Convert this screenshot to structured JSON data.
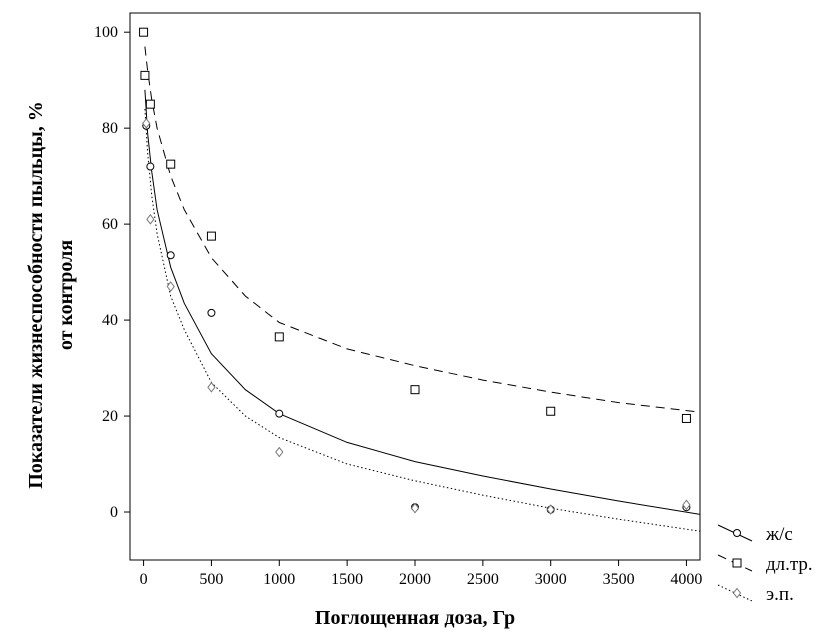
{
  "chart_data": {
    "type": "scatter",
    "xlabel": "Поглощенная доза, Гр",
    "ylabel_lines": [
      "Показатели жизнеспособности пыльцы, %",
      "от контроля"
    ],
    "xlim": [
      -100,
      4100
    ],
    "ylim": [
      -10,
      104
    ],
    "x_ticks": [
      0,
      500,
      1000,
      1500,
      2000,
      2500,
      3000,
      3500,
      4000
    ],
    "y_ticks": [
      0,
      20,
      40,
      60,
      80,
      100
    ],
    "legend_position": "right-bottom",
    "grid": false,
    "series": [
      {
        "name": "ж/с",
        "marker": "circle",
        "line": "solid",
        "points": [
          {
            "x": 0,
            "y": 100
          },
          {
            "x": 10,
            "y": 91
          },
          {
            "x": 20,
            "y": 80.5
          },
          {
            "x": 50,
            "y": 72
          },
          {
            "x": 200,
            "y": 53.5
          },
          {
            "x": 500,
            "y": 41.5
          },
          {
            "x": 1000,
            "y": 20.5
          },
          {
            "x": 2000,
            "y": 1
          },
          {
            "x": 3000,
            "y": 0.5
          },
          {
            "x": 4000,
            "y": 1
          }
        ],
        "curve": [
          {
            "x": 10,
            "y": 88
          },
          {
            "x": 30,
            "y": 79
          },
          {
            "x": 60,
            "y": 71
          },
          {
            "x": 100,
            "y": 63
          },
          {
            "x": 200,
            "y": 51
          },
          {
            "x": 300,
            "y": 43.5
          },
          {
            "x": 500,
            "y": 33
          },
          {
            "x": 750,
            "y": 25.5
          },
          {
            "x": 1000,
            "y": 20.5
          },
          {
            "x": 1500,
            "y": 14.5
          },
          {
            "x": 2000,
            "y": 10.5
          },
          {
            "x": 2500,
            "y": 7.5
          },
          {
            "x": 3000,
            "y": 4.8
          },
          {
            "x": 3500,
            "y": 2.3
          },
          {
            "x": 4100,
            "y": -0.5
          }
        ]
      },
      {
        "name": "дл.тр.",
        "marker": "square",
        "line": "dashed",
        "points": [
          {
            "x": 0,
            "y": 100
          },
          {
            "x": 10,
            "y": 91
          },
          {
            "x": 50,
            "y": 85
          },
          {
            "x": 200,
            "y": 72.5
          },
          {
            "x": 500,
            "y": 57.5
          },
          {
            "x": 1000,
            "y": 36.5
          },
          {
            "x": 2000,
            "y": 25.5
          },
          {
            "x": 3000,
            "y": 21
          },
          {
            "x": 4000,
            "y": 19.5
          }
        ],
        "curve": [
          {
            "x": 10,
            "y": 97
          },
          {
            "x": 30,
            "y": 92
          },
          {
            "x": 60,
            "y": 86
          },
          {
            "x": 100,
            "y": 80
          },
          {
            "x": 200,
            "y": 70
          },
          {
            "x": 300,
            "y": 63
          },
          {
            "x": 500,
            "y": 53
          },
          {
            "x": 750,
            "y": 45
          },
          {
            "x": 1000,
            "y": 39.5
          },
          {
            "x": 1500,
            "y": 34
          },
          {
            "x": 2000,
            "y": 30.5
          },
          {
            "x": 2500,
            "y": 27.5
          },
          {
            "x": 3000,
            "y": 25
          },
          {
            "x": 3500,
            "y": 22.8
          },
          {
            "x": 4100,
            "y": 20.8
          }
        ]
      },
      {
        "name": "э.п.",
        "marker": "diamond",
        "line": "dotted",
        "points": [
          {
            "x": 20,
            "y": 81
          },
          {
            "x": 50,
            "y": 61
          },
          {
            "x": 200,
            "y": 47
          },
          {
            "x": 500,
            "y": 26
          },
          {
            "x": 1000,
            "y": 12.5
          },
          {
            "x": 2000,
            "y": 0.8
          },
          {
            "x": 3000,
            "y": 0.5
          },
          {
            "x": 4000,
            "y": 1.5
          }
        ],
        "curve": [
          {
            "x": 10,
            "y": 84
          },
          {
            "x": 30,
            "y": 75
          },
          {
            "x": 60,
            "y": 66
          },
          {
            "x": 100,
            "y": 58
          },
          {
            "x": 200,
            "y": 45
          },
          {
            "x": 300,
            "y": 38
          },
          {
            "x": 500,
            "y": 27
          },
          {
            "x": 750,
            "y": 20
          },
          {
            "x": 1000,
            "y": 15.5
          },
          {
            "x": 1500,
            "y": 10
          },
          {
            "x": 2000,
            "y": 6.5
          },
          {
            "x": 2500,
            "y": 3.5
          },
          {
            "x": 3000,
            "y": 0.8
          },
          {
            "x": 3500,
            "y": -1.5
          },
          {
            "x": 4100,
            "y": -4
          }
        ]
      }
    ]
  }
}
